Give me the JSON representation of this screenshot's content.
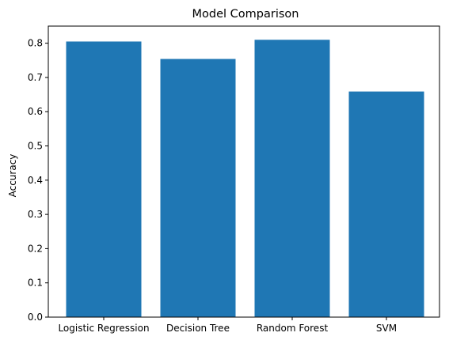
{
  "chart_data": {
    "type": "bar",
    "title": "Model Comparison",
    "xlabel": "",
    "ylabel": "Accuracy",
    "categories": [
      "Logistic Regression",
      "Decision Tree",
      "Random Forest",
      "SVM"
    ],
    "values": [
      0.805,
      0.754,
      0.81,
      0.659
    ],
    "ylim": [
      0,
      0.85
    ],
    "yticks": [
      "0.0",
      "0.1",
      "0.2",
      "0.3",
      "0.4",
      "0.5",
      "0.6",
      "0.7",
      "0.8"
    ],
    "bar_color": "#1f77b4",
    "grid": false,
    "legend": "none"
  }
}
